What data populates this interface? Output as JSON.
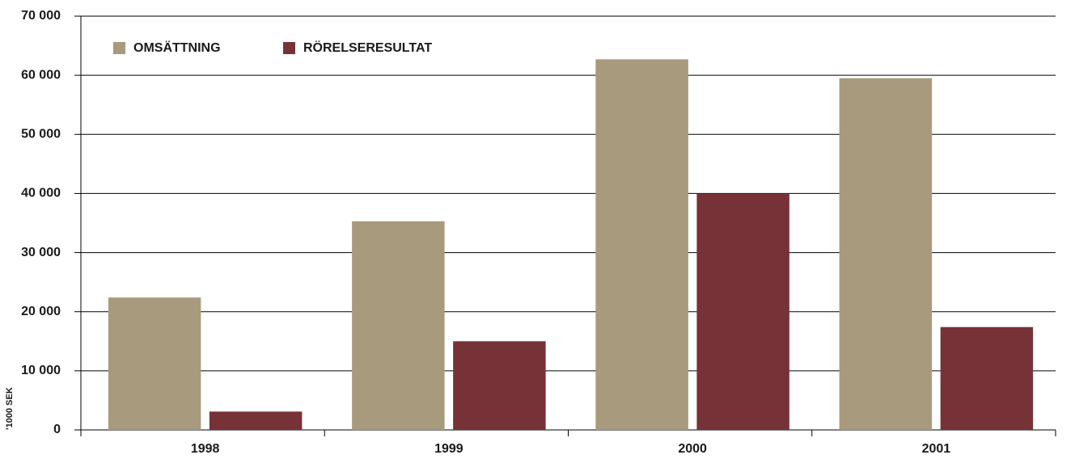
{
  "chart_data": {
    "type": "bar",
    "y_axis_label": "'1000 SEK",
    "categories": [
      "1998",
      "1999",
      "2000",
      "2001"
    ],
    "series": [
      {
        "name": "OMSÄTTNING",
        "color": "#a89a7c",
        "values": [
          22400,
          35300,
          62700,
          59500
        ]
      },
      {
        "name": "RÖRELSERESULTAT",
        "color": "#773237",
        "values": [
          3100,
          15000,
          40000,
          17400
        ]
      }
    ],
    "ylim": [
      0,
      70000
    ],
    "yticks": [
      0,
      {
        "value": 10000,
        "label": "10 000"
      },
      {
        "value": 20000,
        "label": "20 000"
      },
      {
        "value": 30000,
        "label": "30 000"
      },
      {
        "value": 40000,
        "label": "40 000"
      },
      {
        "value": 50000,
        "label": "50 000"
      },
      {
        "value": 60000,
        "label": "60 000"
      },
      {
        "value": 70000,
        "label": "70 000"
      }
    ],
    "grid": true,
    "legend": "upper left"
  }
}
